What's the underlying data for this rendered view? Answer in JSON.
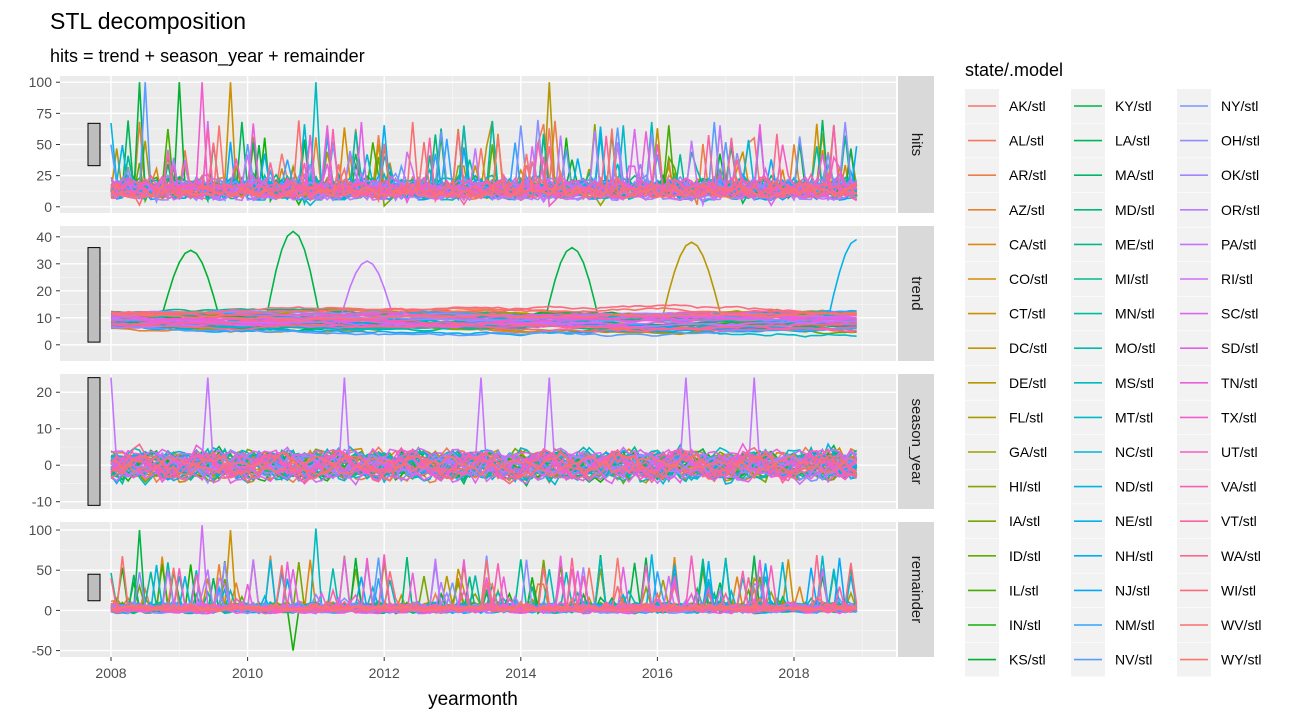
{
  "chart_data": {
    "type": "line",
    "title": "STL decomposition",
    "subtitle": "hits = trend + season_year + remainder",
    "xlabel": "yearmonth",
    "ylabel": "",
    "x_range": [
      "2008-01",
      "2018-12"
    ],
    "x_ticks": [
      "2008",
      "2010",
      "2012",
      "2014",
      "2016",
      "2018"
    ],
    "grid": true,
    "legend_title": "state/.model",
    "legend_placement": "right",
    "legend": [
      {
        "label": "AK/stl",
        "color": "#F8766D"
      },
      {
        "label": "AL/stl",
        "color": "#F47A5B"
      },
      {
        "label": "AR/stl",
        "color": "#EE7E47"
      },
      {
        "label": "AZ/stl",
        "color": "#E6832E"
      },
      {
        "label": "CA/stl",
        "color": "#DE8710"
      },
      {
        "label": "CO/stl",
        "color": "#D58C00"
      },
      {
        "label": "CT/stl",
        "color": "#CC9000"
      },
      {
        "label": "DC/stl",
        "color": "#C19400"
      },
      {
        "label": "DE/stl",
        "color": "#B59800"
      },
      {
        "label": "FL/stl",
        "color": "#A89C00"
      },
      {
        "label": "GA/stl",
        "color": "#9AA000"
      },
      {
        "label": "HI/stl",
        "color": "#8AA300"
      },
      {
        "label": "IA/stl",
        "color": "#77A600"
      },
      {
        "label": "ID/stl",
        "color": "#62A900"
      },
      {
        "label": "IL/stl",
        "color": "#46AC00"
      },
      {
        "label": "IN/stl",
        "color": "#15AF0A"
      },
      {
        "label": "KS/stl",
        "color": "#00B12E"
      },
      {
        "label": "KY/stl",
        "color": "#00B345"
      },
      {
        "label": "LA/stl",
        "color": "#00B557"
      },
      {
        "label": "MA/stl",
        "color": "#00B768"
      },
      {
        "label": "MD/stl",
        "color": "#00B878"
      },
      {
        "label": "ME/stl",
        "color": "#00B987"
      },
      {
        "label": "MI/stl",
        "color": "#00BA95"
      },
      {
        "label": "MN/stl",
        "color": "#00BBA3"
      },
      {
        "label": "MO/stl",
        "color": "#00BBB1"
      },
      {
        "label": "MS/stl",
        "color": "#00BBBE"
      },
      {
        "label": "MT/stl",
        "color": "#00BACA"
      },
      {
        "label": "NC/stl",
        "color": "#00B8D6"
      },
      {
        "label": "ND/stl",
        "color": "#00B5E1"
      },
      {
        "label": "NE/stl",
        "color": "#00B2EB"
      },
      {
        "label": "NH/stl",
        "color": "#00AEF4"
      },
      {
        "label": "NJ/stl",
        "color": "#00A9FC"
      },
      {
        "label": "NM/stl",
        "color": "#2EA3FF"
      },
      {
        "label": "NV/stl",
        "color": "#5B9CFF"
      },
      {
        "label": "NY/stl",
        "color": "#7895FF"
      },
      {
        "label": "OH/stl",
        "color": "#8F8DFF"
      },
      {
        "label": "OK/stl",
        "color": "#A385FF"
      },
      {
        "label": "OR/stl",
        "color": "#B47CFF"
      },
      {
        "label": "PA/stl",
        "color": "#C375FF"
      },
      {
        "label": "RI/stl",
        "color": "#D06EF8"
      },
      {
        "label": "SC/stl",
        "color": "#DB67F0"
      },
      {
        "label": "SD/stl",
        "color": "#E461E6"
      },
      {
        "label": "TN/stl",
        "color": "#EC5EDA"
      },
      {
        "label": "TX/stl",
        "color": "#F25CCD"
      },
      {
        "label": "UT/stl",
        "color": "#F65DBF"
      },
      {
        "label": "VA/stl",
        "color": "#F960B0"
      },
      {
        "label": "VT/stl",
        "color": "#FB63A0"
      },
      {
        "label": "WA/stl",
        "color": "#FC678F"
      },
      {
        "label": "WI/stl",
        "color": "#FB6B7E"
      },
      {
        "label": "WV/stl",
        "color": "#FA6F6F"
      },
      {
        "label": "WY/stl",
        "color": "#F8766D"
      }
    ],
    "panels": [
      {
        "name": "hits",
        "ylim": [
          -5,
          105
        ],
        "yticks": [
          0,
          25,
          50,
          75,
          100
        ],
        "range_bar": [
          33,
          67
        ],
        "profile": {
          "base": 5,
          "spread": 9,
          "spike_prob": 0.05,
          "spike_max": 100,
          "min": 0,
          "max": 100
        },
        "peaks": [
          {
            "series": "KY/stl",
            "date": "2008-06",
            "value": 100
          },
          {
            "series": "NV/stl",
            "date": "2008-07",
            "value": 100
          },
          {
            "series": "KS/stl",
            "date": "2009-01",
            "value": 100
          },
          {
            "series": "TX/stl",
            "date": "2009-05",
            "value": 100
          },
          {
            "series": "CT/stl",
            "date": "2009-10",
            "value": 100
          },
          {
            "series": "MS/stl",
            "date": "2011-01",
            "value": 100
          },
          {
            "series": "DE/stl",
            "date": "2014-06",
            "value": 100
          }
        ]
      },
      {
        "name": "trend",
        "ylim": [
          -6,
          44
        ],
        "yticks": [
          0,
          10,
          20,
          30,
          40
        ],
        "range_bar": [
          1,
          36
        ],
        "profile": {
          "base": 6,
          "spread": 6,
          "smooth": true,
          "min": -4,
          "max": 42
        },
        "peaks": [
          {
            "series": "KS/stl",
            "date": "2009-03",
            "value": 35
          },
          {
            "series": "KY/stl",
            "date": "2010-09",
            "value": 42
          },
          {
            "series": "PA/stl",
            "date": "2011-10",
            "value": 31
          },
          {
            "series": "KY/stl",
            "date": "2014-10",
            "value": 36
          },
          {
            "series": "DE/stl",
            "date": "2016-07",
            "value": 38
          },
          {
            "series": "NE/stl",
            "date": "2018-12",
            "value": 39
          }
        ]
      },
      {
        "name": "season_year",
        "ylim": [
          -12,
          25
        ],
        "yticks": [
          -10,
          0,
          10,
          20
        ],
        "range_bar": [
          -11,
          24
        ],
        "profile": {
          "base": 0,
          "spread": 3,
          "seasonal": true,
          "min": -11,
          "max": 24
        },
        "peaks": [
          {
            "series": "PA/stl",
            "date": "2008-01",
            "value": 24
          },
          {
            "series": "PA/stl",
            "date": "2009-06",
            "value": 24
          },
          {
            "series": "PA/stl",
            "date": "2011-06",
            "value": 24
          },
          {
            "series": "PA/stl",
            "date": "2013-06",
            "value": 24
          },
          {
            "series": "PA/stl",
            "date": "2014-06",
            "value": 24
          },
          {
            "series": "PA/stl",
            "date": "2016-06",
            "value": 24
          },
          {
            "series": "PA/stl",
            "date": "2017-06",
            "value": 24
          }
        ]
      },
      {
        "name": "remainder",
        "ylim": [
          -58,
          110
        ],
        "yticks": [
          -50,
          0,
          50,
          100
        ],
        "range_bar": [
          12,
          45
        ],
        "profile": {
          "base": 0,
          "spread": 7,
          "spike_prob": 0.04,
          "spike_max": 100,
          "min": -50,
          "max": 106
        },
        "peaks": [
          {
            "series": "KY/stl",
            "date": "2008-06",
            "value": 100
          },
          {
            "series": "RI/stl",
            "date": "2009-05",
            "value": 106
          },
          {
            "series": "CT/stl",
            "date": "2009-10",
            "value": 100
          },
          {
            "series": "MS/stl",
            "date": "2011-01",
            "value": 102
          },
          {
            "series": "IN/stl",
            "date": "2010-09",
            "value": -50
          }
        ]
      }
    ]
  }
}
